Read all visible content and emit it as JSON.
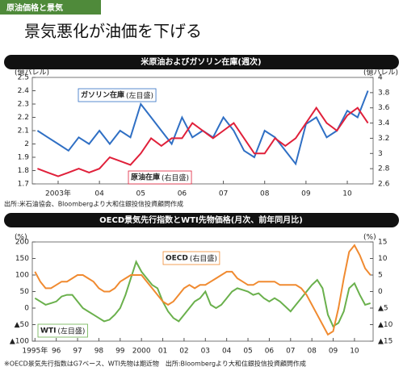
{
  "header": {
    "tag": "原油価格と景気",
    "title": "景気悪化が油価を下げる"
  },
  "chart_data": [
    {
      "type": "line",
      "title": "米原油およびガソリン在庫(週次)",
      "ylabel": "(億バレル)",
      "y2label": "(億バレル)",
      "categories": [
        null,
        null,
        "2003年",
        null,
        null,
        null,
        "04",
        null,
        null,
        null,
        "05",
        null,
        null,
        null,
        "06",
        null,
        null,
        null,
        "07",
        null,
        null,
        null,
        "08",
        null,
        null,
        null,
        "09",
        null,
        null,
        null,
        "10",
        null,
        null
      ],
      "series": [
        {
          "name": "ガソリン在庫",
          "note": "(左目盛)",
          "color": "#2f6fc4",
          "values": [
            2.1,
            2.05,
            2.0,
            1.95,
            2.05,
            2.0,
            2.1,
            2.0,
            2.1,
            2.05,
            2.3,
            2.2,
            2.1,
            2.0,
            2.2,
            2.05,
            2.1,
            2.05,
            2.2,
            2.1,
            1.95,
            1.9,
            2.1,
            2.05,
            1.95,
            1.85,
            2.15,
            2.2,
            2.05,
            2.1,
            2.25,
            2.2,
            2.4
          ]
        },
        {
          "name": "原油在庫",
          "note": "(右目盛)",
          "color": "#e0203a",
          "axis": "y2",
          "values": [
            2.8,
            2.75,
            2.7,
            2.75,
            2.8,
            2.75,
            2.8,
            2.95,
            2.9,
            2.85,
            3.0,
            3.2,
            3.1,
            3.2,
            3.2,
            3.4,
            3.3,
            3.2,
            3.3,
            3.4,
            3.2,
            3.0,
            3.0,
            3.2,
            3.1,
            3.2,
            3.4,
            3.6,
            3.4,
            3.3,
            3.5,
            3.6,
            3.4
          ]
        }
      ],
      "ylim": [
        1.7,
        2.5
      ],
      "yticks": [
        1.7,
        1.8,
        1.9,
        2.0,
        2.1,
        2.2,
        2.3,
        2.4,
        2.5
      ],
      "y2lim": [
        2.6,
        4.0
      ],
      "y2ticks": [
        2.6,
        2.8,
        3.0,
        3.2,
        3.4,
        3.6,
        3.8,
        4.0
      ],
      "source": "出所:米石油協会、Bloombergより大和住銀投信投資顧問作成"
    },
    {
      "type": "line",
      "title": "OECD景気先行指数とWTI先物価格(月次、前年同月比)",
      "ylabel": "(%)",
      "y2label": "(%)",
      "categories": [
        "1995年",
        null,
        null,
        null,
        "96",
        null,
        null,
        null,
        "97",
        null,
        null,
        null,
        "98",
        null,
        null,
        null,
        "99",
        null,
        null,
        null,
        "2000",
        null,
        null,
        null,
        "01",
        null,
        null,
        null,
        "02",
        null,
        null,
        null,
        "03",
        null,
        null,
        null,
        "04",
        null,
        null,
        null,
        "05",
        null,
        null,
        null,
        "06",
        null,
        null,
        null,
        "07",
        null,
        null,
        null,
        "08",
        null,
        null,
        null,
        "09",
        null,
        null,
        null,
        "10",
        null,
        null,
        null
      ],
      "series": [
        {
          "name": "WTI",
          "note": "(左目盛)",
          "color": "#6ab04c",
          "values": [
            30,
            20,
            10,
            15,
            20,
            35,
            40,
            40,
            20,
            0,
            -10,
            -20,
            -30,
            -40,
            -35,
            -20,
            0,
            40,
            90,
            140,
            110,
            90,
            70,
            60,
            20,
            -10,
            -30,
            -40,
            -20,
            0,
            20,
            30,
            50,
            10,
            0,
            10,
            30,
            50,
            60,
            55,
            50,
            40,
            45,
            30,
            20,
            30,
            20,
            5,
            -10,
            10,
            30,
            50,
            70,
            85,
            60,
            -20,
            -55,
            -45,
            -10,
            60,
            75,
            40,
            10,
            15
          ]
        },
        {
          "name": "OECD",
          "note": "(右目盛)",
          "color": "#f08a30",
          "axis": "y2",
          "values": [
            6,
            3,
            1,
            1,
            2,
            3,
            3,
            4,
            5,
            5,
            4,
            3,
            1,
            0,
            0,
            1,
            3,
            4,
            5,
            5,
            5,
            3,
            1,
            -1,
            -3,
            -4,
            -3,
            -1,
            1,
            2,
            1,
            2,
            2,
            3,
            4,
            5,
            6,
            6,
            4,
            3,
            2,
            2,
            3,
            3,
            3,
            3,
            2,
            2,
            2,
            2,
            1,
            -1,
            -4,
            -7,
            -10,
            -13,
            -12,
            -5,
            4,
            12,
            14,
            11,
            7,
            5
          ]
        }
      ],
      "ylim": [
        -100,
        200
      ],
      "yticks": [
        {
          "value": -100,
          "label": "▲100"
        },
        {
          "value": -50,
          "label": "▲50"
        },
        0,
        50,
        100,
        150,
        200
      ],
      "y2lim": [
        -15,
        15
      ],
      "y2ticks": [
        {
          "value": -15,
          "label": "▲15"
        },
        {
          "value": -10,
          "label": "▲10"
        },
        {
          "value": -5,
          "label": "▲5"
        },
        0,
        5,
        10,
        15
      ],
      "source": "※OECD景気先行指数はG7ベース、WTI先物は期近物　出所:Bloombergより大和住銀投信投資顧問作成"
    }
  ]
}
